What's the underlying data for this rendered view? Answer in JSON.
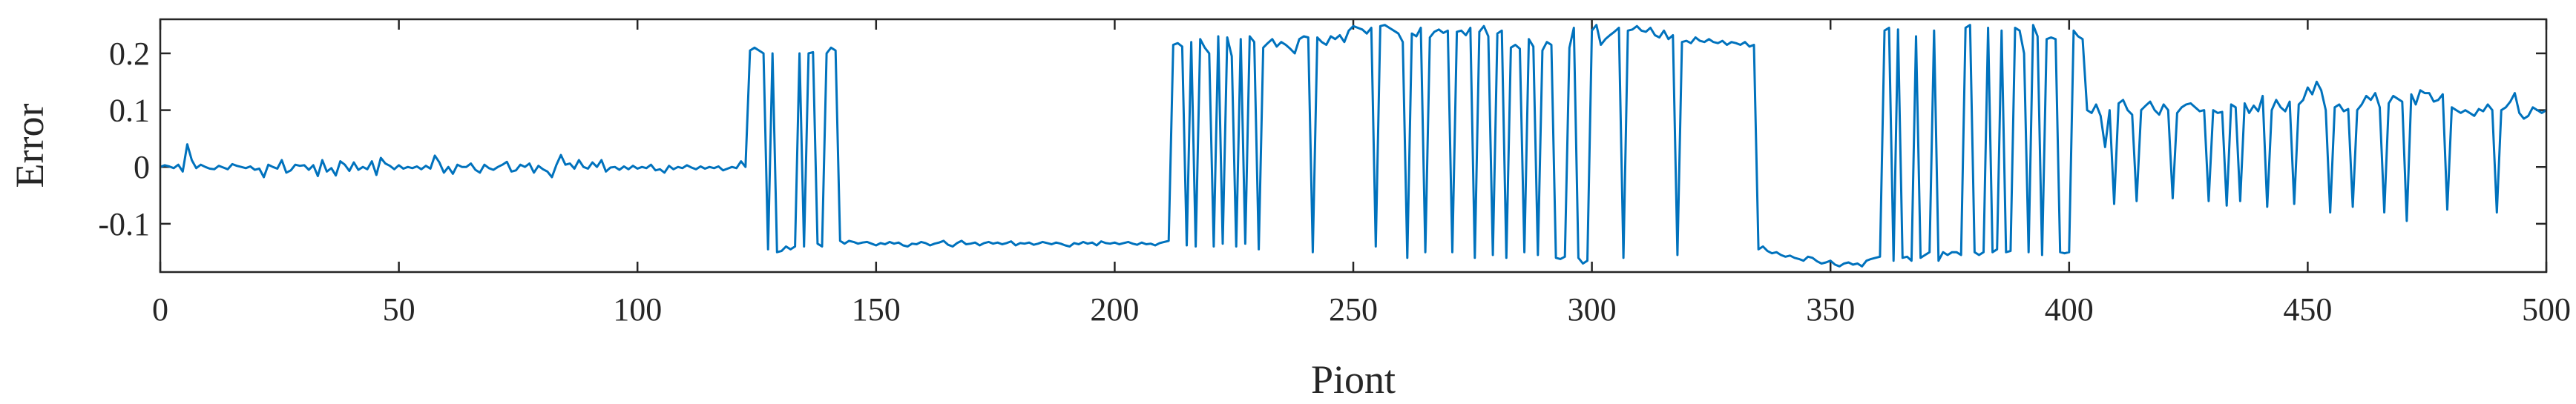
{
  "chart_data": {
    "type": "line",
    "xlabel": "Piont",
    "ylabel": "Error",
    "xlim": [
      0,
      500
    ],
    "ylim": [
      -0.185,
      0.26
    ],
    "xticks": [
      0,
      50,
      100,
      150,
      200,
      250,
      300,
      350,
      400,
      450,
      500
    ],
    "xtick_labels": [
      "0",
      "50",
      "100",
      "150",
      "200",
      "250",
      "300",
      "350",
      "400",
      "450",
      "500"
    ],
    "yticks": [
      -0.1,
      0,
      0.1,
      0.2
    ],
    "ytick_labels": [
      "-0.1",
      "0",
      "0.1",
      "0.2"
    ],
    "grid": false,
    "line_color": "#0072BD",
    "series": [
      {
        "values": [
          0.0,
          0.003,
          0.001,
          -0.002,
          0.004,
          -0.008,
          0.04,
          0.012,
          -0.002,
          0.004,
          0.0,
          -0.003,
          -0.004,
          0.002,
          -0.001,
          -0.004,
          0.005,
          0.002,
          0.0,
          -0.002,
          0.001,
          -0.005,
          -0.003,
          -0.018,
          0.004,
          0.0,
          -0.003,
          0.012,
          -0.01,
          -0.006,
          0.004,
          0.002,
          0.003,
          -0.005,
          0.003,
          -0.016,
          0.012,
          -0.008,
          -0.002,
          -0.015,
          0.01,
          0.004,
          -0.007,
          0.008,
          -0.005,
          0.0,
          -0.004,
          0.01,
          -0.014,
          0.016,
          0.006,
          0.002,
          -0.004,
          0.003,
          -0.003,
          0.0,
          -0.002,
          0.001,
          -0.004,
          0.002,
          -0.003,
          0.02,
          0.008,
          -0.01,
          0.0,
          -0.012,
          0.004,
          0.0,
          0.0,
          0.006,
          -0.005,
          -0.01,
          0.004,
          -0.002,
          -0.005,
          0.0,
          0.004,
          0.009,
          -0.008,
          -0.006,
          0.004,
          0.0,
          0.006,
          -0.01,
          0.002,
          -0.004,
          -0.008,
          -0.018,
          0.004,
          0.021,
          0.004,
          0.006,
          -0.003,
          0.012,
          0.0,
          -0.003,
          0.008,
          0.0,
          0.012,
          -0.008,
          -0.001,
          0.0,
          -0.005,
          0.001,
          -0.004,
          0.002,
          -0.003,
          0.0,
          -0.002,
          0.004,
          -0.006,
          -0.004,
          -0.01,
          0.002,
          -0.004,
          0.0,
          -0.002,
          0.003,
          -0.001,
          -0.004,
          0.001,
          -0.003,
          0.0,
          -0.002,
          0.001,
          -0.006,
          -0.003,
          0.0,
          -0.002,
          0.01,
          0.0,
          0.205,
          0.21,
          0.205,
          0.2,
          -0.145,
          0.2,
          -0.15,
          -0.148,
          -0.14,
          -0.145,
          -0.14,
          0.2,
          -0.14,
          0.2,
          0.202,
          -0.135,
          -0.14,
          0.2,
          0.21,
          0.205,
          -0.13,
          -0.135,
          -0.13,
          -0.132,
          -0.135,
          -0.133,
          -0.132,
          -0.135,
          -0.138,
          -0.134,
          -0.136,
          -0.132,
          -0.135,
          -0.133,
          -0.138,
          -0.14,
          -0.135,
          -0.136,
          -0.132,
          -0.134,
          -0.138,
          -0.135,
          -0.133,
          -0.13,
          -0.137,
          -0.14,
          -0.134,
          -0.13,
          -0.136,
          -0.135,
          -0.133,
          -0.138,
          -0.134,
          -0.132,
          -0.135,
          -0.133,
          -0.136,
          -0.134,
          -0.131,
          -0.138,
          -0.134,
          -0.135,
          -0.133,
          -0.137,
          -0.135,
          -0.132,
          -0.134,
          -0.136,
          -0.133,
          -0.135,
          -0.138,
          -0.14,
          -0.134,
          -0.136,
          -0.132,
          -0.135,
          -0.133,
          -0.138,
          -0.131,
          -0.134,
          -0.135,
          -0.133,
          -0.136,
          -0.134,
          -0.132,
          -0.135,
          -0.137,
          -0.133,
          -0.136,
          -0.135,
          -0.138,
          -0.134,
          -0.132,
          -0.13,
          0.215,
          0.218,
          0.212,
          -0.138,
          0.22,
          -0.14,
          0.225,
          0.21,
          0.2,
          -0.14,
          0.23,
          -0.135,
          0.228,
          0.195,
          -0.14,
          0.225,
          -0.135,
          0.23,
          0.22,
          -0.145,
          0.21,
          0.218,
          0.225,
          0.212,
          0.22,
          0.215,
          0.208,
          0.2,
          0.225,
          0.23,
          0.228,
          -0.15,
          0.228,
          0.22,
          0.215,
          0.23,
          0.225,
          0.232,
          0.22,
          0.24,
          0.248,
          0.245,
          0.242,
          0.235,
          0.245,
          -0.14,
          0.248,
          0.25,
          0.245,
          0.24,
          0.235,
          0.22,
          -0.16,
          0.235,
          0.23,
          0.245,
          -0.15,
          0.228,
          0.238,
          0.242,
          0.236,
          0.24,
          -0.15,
          0.238,
          0.24,
          0.232,
          0.245,
          -0.16,
          0.238,
          0.248,
          0.23,
          -0.155,
          0.235,
          0.24,
          -0.16,
          0.21,
          0.215,
          0.208,
          -0.15,
          0.225,
          0.212,
          -0.155,
          0.205,
          0.22,
          0.215,
          -0.16,
          -0.162,
          -0.158,
          0.21,
          0.245,
          -0.16,
          -0.17,
          -0.165,
          0.24,
          0.25,
          0.215,
          0.225,
          0.232,
          0.238,
          0.245,
          -0.16,
          0.24,
          0.242,
          0.248,
          0.24,
          0.238,
          0.245,
          0.232,
          0.228,
          0.24,
          0.225,
          0.232,
          -0.155,
          0.22,
          0.222,
          0.218,
          0.228,
          0.222,
          0.22,
          0.225,
          0.22,
          0.218,
          0.222,
          0.215,
          0.22,
          0.218,
          0.215,
          0.22,
          0.212,
          0.215,
          -0.145,
          -0.14,
          -0.148,
          -0.152,
          -0.15,
          -0.155,
          -0.158,
          -0.156,
          -0.16,
          -0.162,
          -0.165,
          -0.158,
          -0.16,
          -0.166,
          -0.17,
          -0.168,
          -0.165,
          -0.172,
          -0.175,
          -0.17,
          -0.168,
          -0.172,
          -0.17,
          -0.175,
          -0.165,
          -0.162,
          -0.16,
          -0.158,
          0.24,
          0.245,
          -0.165,
          0.242,
          -0.16,
          -0.158,
          -0.165,
          0.23,
          -0.16,
          -0.155,
          -0.15,
          0.24,
          -0.165,
          -0.15,
          -0.155,
          -0.15,
          -0.15,
          -0.155,
          0.245,
          0.25,
          -0.15,
          -0.155,
          -0.15,
          0.245,
          -0.15,
          -0.145,
          0.24,
          -0.15,
          -0.148,
          0.245,
          0.24,
          0.2,
          -0.15,
          0.25,
          0.23,
          -0.155,
          0.225,
          0.228,
          0.225,
          -0.15,
          -0.152,
          -0.15,
          0.24,
          0.23,
          0.225,
          0.1,
          0.095,
          0.11,
          0.09,
          0.035,
          0.1,
          -0.065,
          0.112,
          0.118,
          0.1,
          0.092,
          -0.06,
          0.1,
          0.108,
          0.115,
          0.1,
          0.092,
          0.11,
          0.1,
          -0.055,
          0.095,
          0.105,
          0.11,
          0.112,
          0.105,
          0.098,
          0.1,
          -0.06,
          0.1,
          0.095,
          0.097,
          -0.068,
          0.11,
          0.105,
          -0.06,
          0.112,
          0.095,
          0.108,
          0.098,
          0.125,
          -0.07,
          0.1,
          0.118,
          0.105,
          0.098,
          0.115,
          -0.065,
          0.11,
          0.118,
          0.14,
          0.128,
          0.15,
          0.135,
          0.1,
          -0.08,
          0.105,
          0.11,
          0.098,
          0.102,
          -0.07,
          0.1,
          0.11,
          0.125,
          0.118,
          0.13,
          0.105,
          -0.08,
          0.112,
          0.125,
          0.12,
          0.115,
          -0.095,
          0.128,
          0.11,
          0.135,
          0.13,
          0.13,
          0.115,
          0.118,
          0.128,
          -0.075,
          0.105,
          0.1,
          0.095,
          0.1,
          0.095,
          0.09,
          0.102,
          0.098,
          0.11,
          0.1,
          -0.08,
          0.1,
          0.105,
          0.115,
          0.13,
          0.095,
          0.085,
          0.09,
          0.105,
          0.1,
          0.095,
          0.1
        ]
      }
    ]
  }
}
